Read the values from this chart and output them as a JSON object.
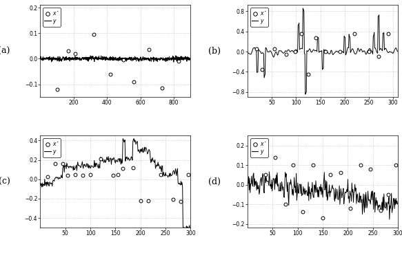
{
  "fig_width": 5.83,
  "fig_height": 3.68,
  "dpi": 100,
  "panel_labels": [
    "(a)",
    "(b)",
    "(c)",
    "(d)"
  ],
  "subplots": [
    {
      "id": "a",
      "xlim": [
        0,
        900
      ],
      "ylim": [
        -0.15,
        0.21
      ],
      "xticks": [
        200,
        400,
        600,
        800
      ],
      "yticks": [
        -0.1,
        0.0,
        0.1,
        0.2
      ],
      "n_line": 900,
      "n_circles": 10,
      "legend_loc": "upper left"
    },
    {
      "id": "b",
      "xlim": [
        0,
        310
      ],
      "ylim": [
        -0.9,
        0.92
      ],
      "xticks": [
        50,
        100,
        150,
        200,
        250,
        300
      ],
      "yticks": [
        -0.8,
        -0.4,
        0.0,
        0.4,
        0.8
      ],
      "n_line": 310,
      "n_circles": 14,
      "legend_loc": "upper left"
    },
    {
      "id": "c",
      "xlim": [
        0,
        300
      ],
      "ylim": [
        -0.5,
        0.45
      ],
      "xticks": [
        50,
        100,
        150,
        200,
        250,
        300
      ],
      "yticks": [
        -0.4,
        -0.2,
        0.0,
        0.2,
        0.4
      ],
      "n_line": 300,
      "n_circles": 18,
      "legend_loc": "upper left"
    },
    {
      "id": "d",
      "xlim": [
        0,
        300
      ],
      "ylim": [
        -0.22,
        0.25
      ],
      "xticks": [
        50,
        100,
        150,
        200,
        250,
        300
      ],
      "yticks": [
        -0.2,
        -0.1,
        0.0,
        0.1,
        0.2
      ],
      "n_line": 300,
      "n_circles": 16,
      "legend_loc": "upper left"
    }
  ]
}
